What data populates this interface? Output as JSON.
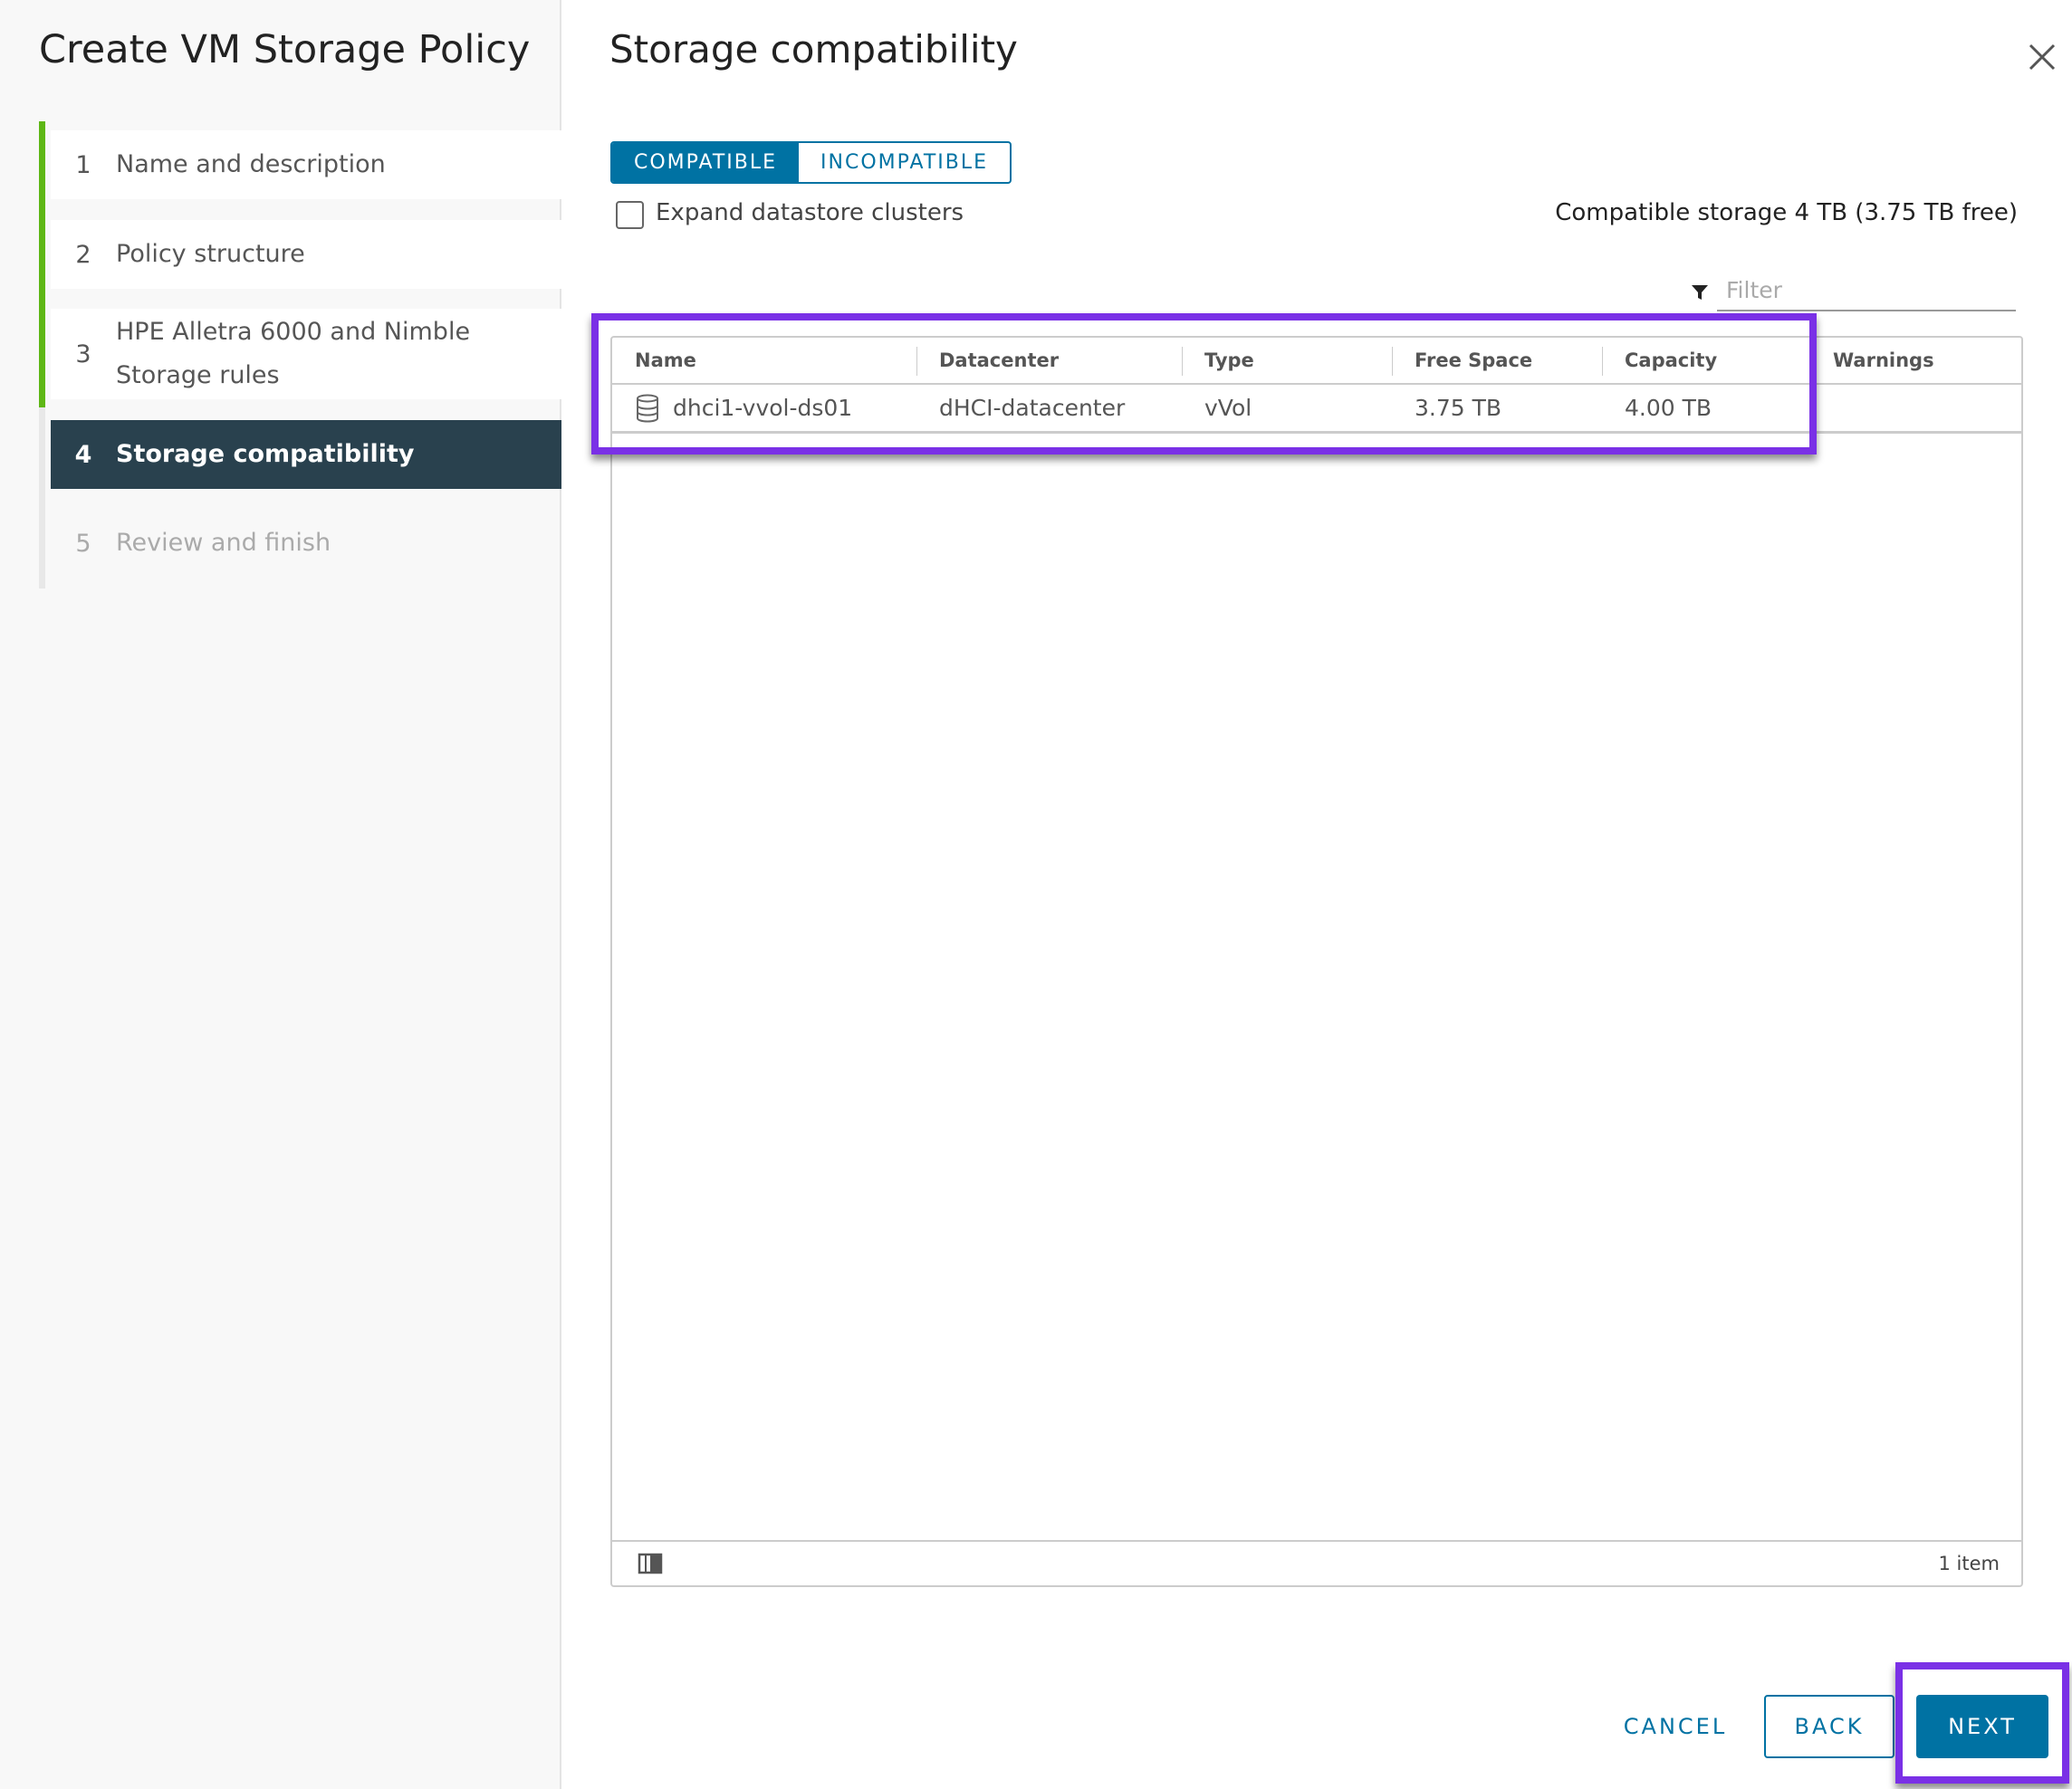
{
  "wizard": {
    "title": "Create VM Storage Policy",
    "steps": [
      {
        "num": "1",
        "label": "Name and description",
        "state": "completed"
      },
      {
        "num": "2",
        "label": "Policy structure",
        "state": "completed"
      },
      {
        "num": "3",
        "label": "HPE Alletra 6000 and Nimble Storage rules",
        "state": "completed"
      },
      {
        "num": "4",
        "label": "Storage compatibility",
        "state": "active"
      },
      {
        "num": "5",
        "label": "Review and finish",
        "state": "disabled"
      }
    ]
  },
  "main": {
    "title": "Storage compatibility",
    "tabs": {
      "compatible": "COMPATIBLE",
      "incompatible": "INCOMPATIBLE"
    },
    "expand_label": "Expand datastore clusters",
    "expand_checked": false,
    "summary": "Compatible storage 4 TB (3.75 TB free)",
    "filter_placeholder": "Filter",
    "grid": {
      "columns": [
        "Name",
        "Datacenter",
        "Type",
        "Free Space",
        "Capacity",
        "Warnings"
      ],
      "rows": [
        {
          "name": "dhci1-vvol-ds01",
          "datacenter": "dHCI-datacenter",
          "type": "vVol",
          "free": "3.75 TB",
          "capacity": "4.00 TB",
          "warnings": ""
        }
      ],
      "footer_count": "1 item"
    }
  },
  "buttons": {
    "cancel": "CANCEL",
    "back": "BACK",
    "next": "NEXT"
  },
  "colors": {
    "accent": "#0072a3",
    "active_step": "#29414e",
    "progress": "#5eb715",
    "highlight": "#7a30e6"
  }
}
